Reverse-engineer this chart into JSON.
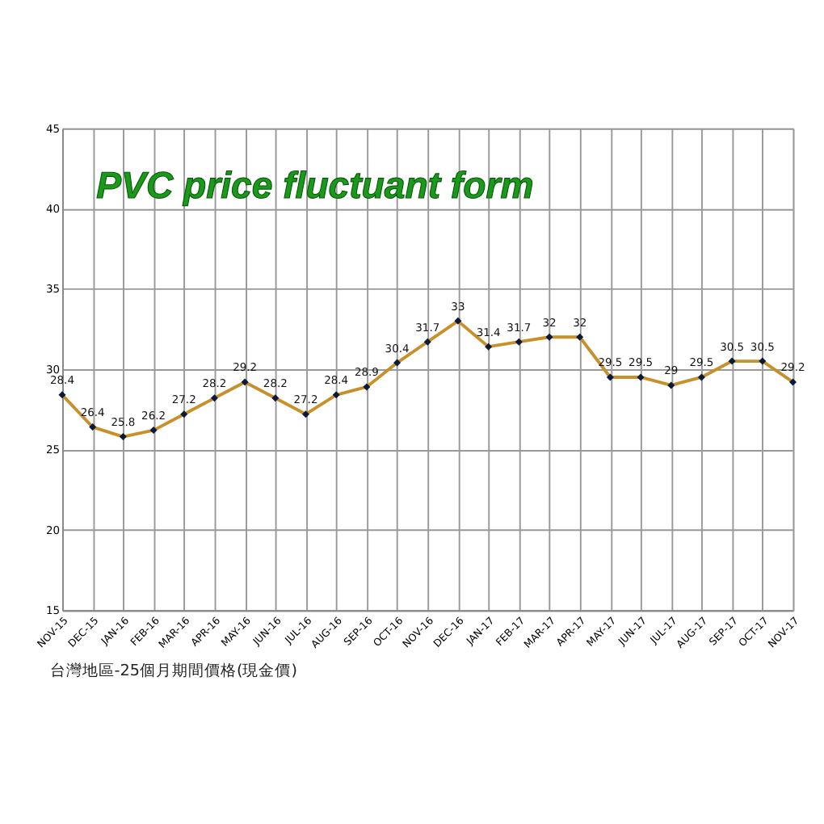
{
  "chart_data": {
    "type": "line",
    "title": "PVC price fluctuant form",
    "annotations": [
      "台灣地區-25個月期間價格(現金價)"
    ],
    "categories": [
      "NOV-15",
      "DEC-15",
      "JAN-16",
      "FEB-16",
      "MAR-16",
      "APR-16",
      "MAY-16",
      "JUN-16",
      "JUL-16",
      "AUG-16",
      "SEP-16",
      "OCT-16",
      "NOV-16",
      "DEC-16",
      "JAN-17",
      "FEB-17",
      "MAR-17",
      "APR-17",
      "MAY-17",
      "JUN-17",
      "JUL-17",
      "AUG-17",
      "SEP-17",
      "OCT-17",
      "NOV-17"
    ],
    "series": [
      {
        "color": "#c8902a",
        "values": [
          28.4,
          26.4,
          25.8,
          26.2,
          27.2,
          28.2,
          29.2,
          28.2,
          27.2,
          28.4,
          28.9,
          30.4,
          31.7,
          33,
          31.4,
          31.7,
          32,
          32,
          29.5,
          29.5,
          29,
          29.5,
          30.5,
          30.5,
          29.2
        ]
      }
    ],
    "ylim": [
      15,
      45
    ],
    "yticks": [
      15,
      20,
      25,
      30,
      35,
      40,
      45
    ],
    "grid": true,
    "marker": "diamond",
    "line_style": "solid",
    "data_labels": true
  }
}
